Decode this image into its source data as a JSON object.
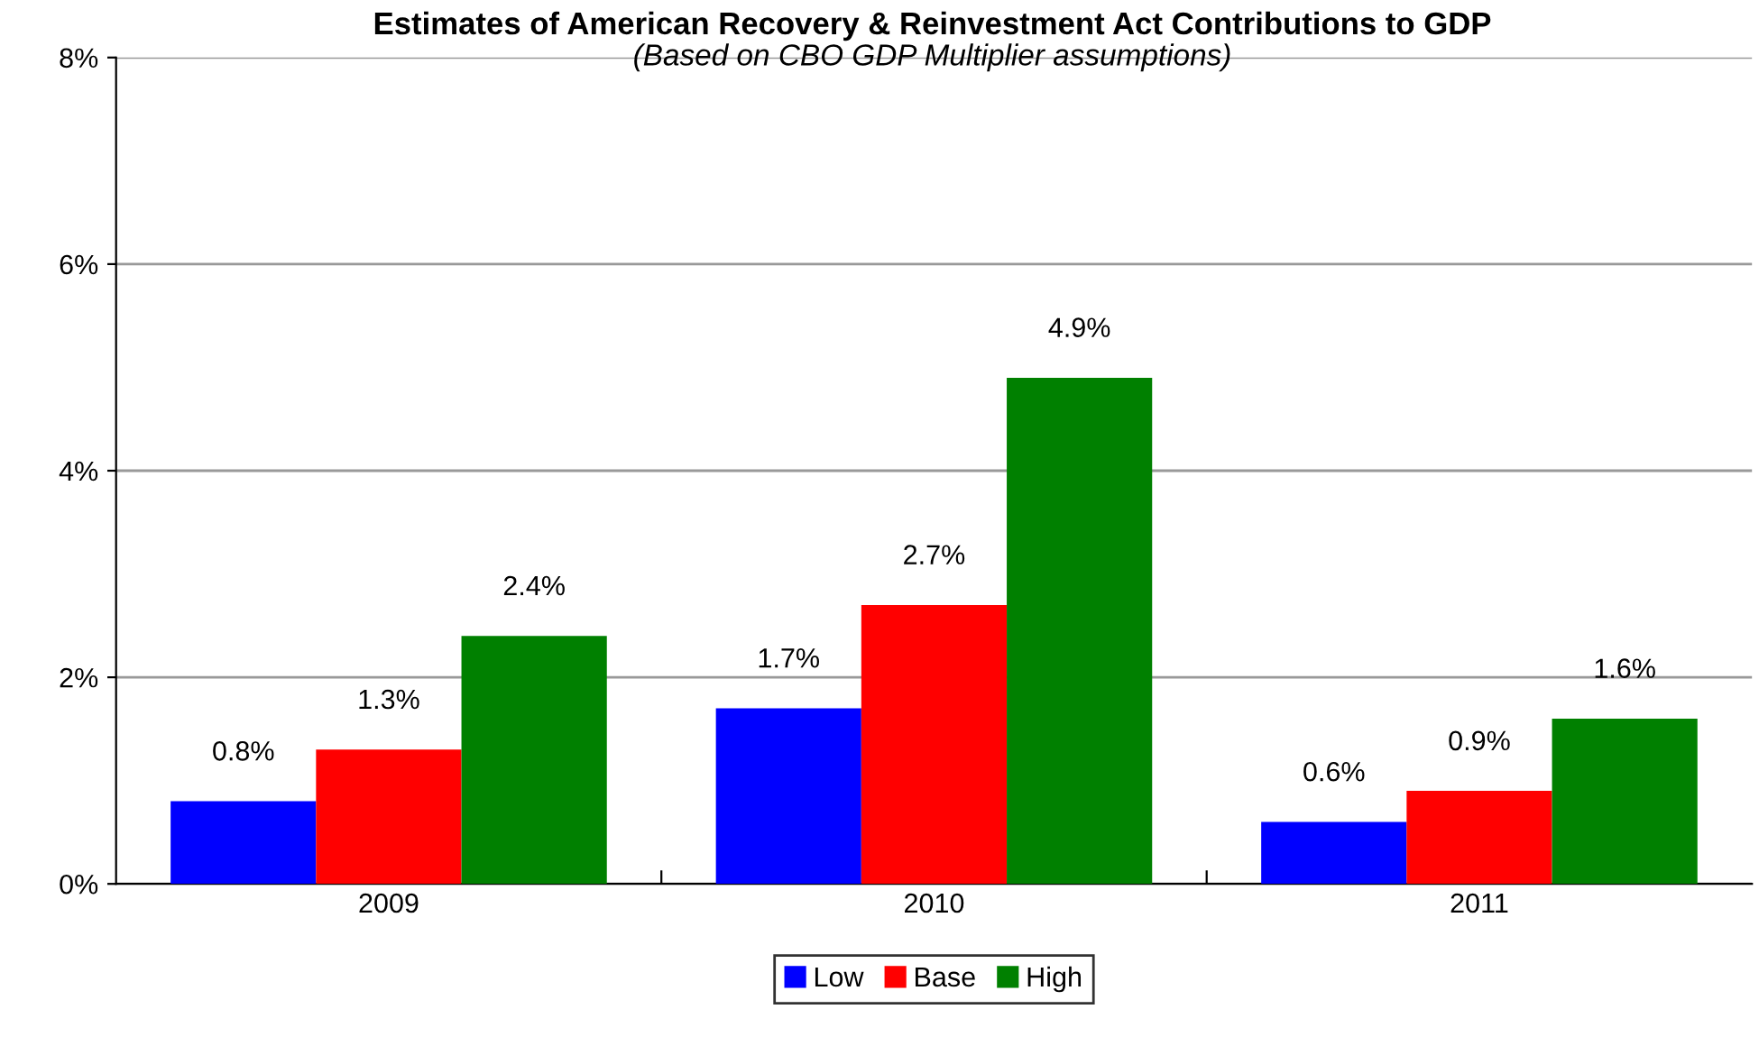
{
  "chart_data": {
    "type": "bar",
    "title": "Estimates of American Recovery & Reinvestment Act Contributions to GDP",
    "subtitle": "(Based on CBO GDP Multiplier assumptions)",
    "categories": [
      "2009",
      "2010",
      "2011"
    ],
    "series": [
      {
        "name": "Low",
        "color": "#0000ff",
        "values": [
          0.8,
          1.7,
          0.6
        ],
        "value_labels": [
          "0.8%",
          "1.7%",
          "0.6%"
        ]
      },
      {
        "name": "Base",
        "color": "#ff0000",
        "values": [
          1.3,
          2.7,
          0.9
        ],
        "value_labels": [
          "1.3%",
          "2.7%",
          "0.9%"
        ]
      },
      {
        "name": "High",
        "color": "#008000",
        "values": [
          2.4,
          4.9,
          1.6
        ],
        "value_labels": [
          "2.4%",
          "4.9%",
          "1.6%"
        ]
      }
    ],
    "ylim": [
      0,
      8
    ],
    "yticks": [
      {
        "value": 0,
        "label": "0%"
      },
      {
        "value": 2,
        "label": "2%"
      },
      {
        "value": 4,
        "label": "4%"
      },
      {
        "value": 6,
        "label": "6%"
      },
      {
        "value": 8,
        "label": "8%"
      }
    ],
    "grid": "y",
    "legend": "bottom"
  }
}
